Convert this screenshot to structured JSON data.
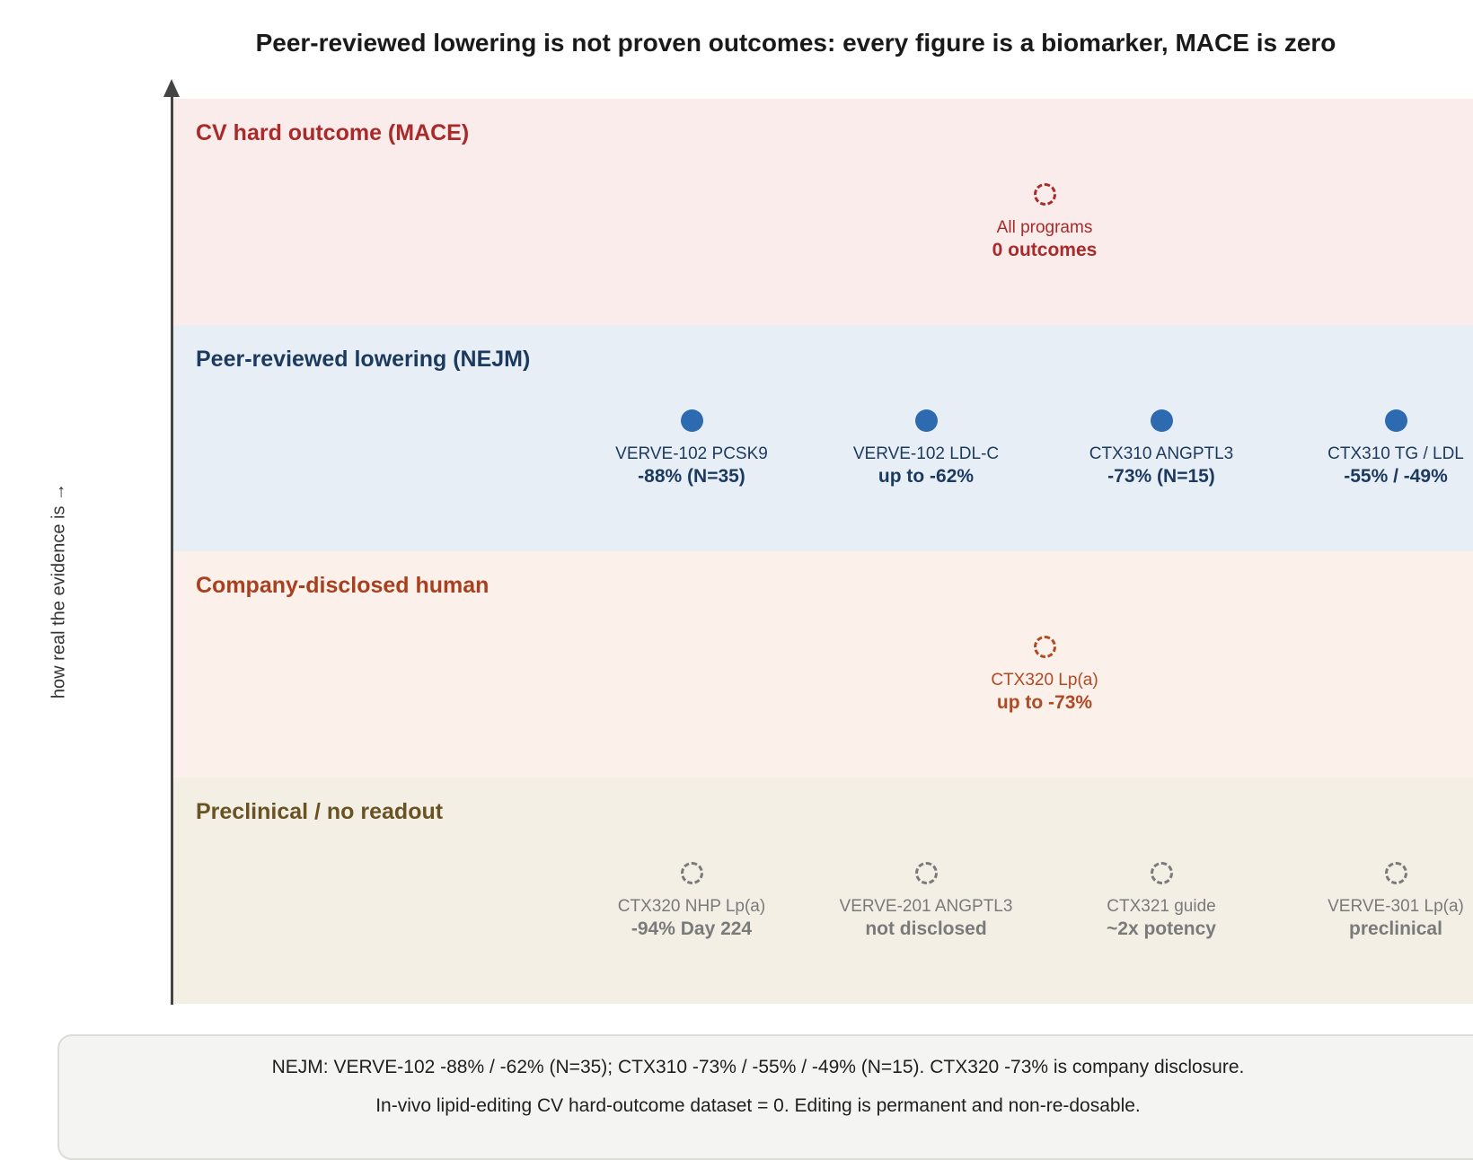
{
  "title": "Peer-reviewed lowering is not proven outcomes: every figure is a biomarker, MACE is zero",
  "y_axis_label": "how real the evidence is →",
  "bands": [
    {
      "label": "CV hard outcome (MACE)",
      "bg": "#faeceb",
      "label_color": "#a82a2a",
      "nodes": [
        {
          "name": "All programs",
          "value": "0 outcomes",
          "marker": "dashed",
          "color": "#a82a2a"
        }
      ]
    },
    {
      "label": "Peer-reviewed lowering (NEJM)",
      "bg": "#e8eef6",
      "label_color": "#1c3a5e",
      "nodes": [
        {
          "name": "VERVE-102 PCSK9",
          "value": "-88% (N=35)",
          "marker": "solid",
          "color": "#1c3a5e"
        },
        {
          "name": "VERVE-102 LDL-C",
          "value": "up to -62%",
          "marker": "solid",
          "color": "#1c3a5e"
        },
        {
          "name": "CTX310 ANGPTL3",
          "value": "-73% (N=15)",
          "marker": "solid",
          "color": "#1c3a5e"
        },
        {
          "name": "CTX310 TG / LDL",
          "value": "-55% / -49%",
          "marker": "solid",
          "color": "#1c3a5e"
        }
      ]
    },
    {
      "label": "Company-disclosed human",
      "bg": "#fcf0ea",
      "label_color": "#a8401f",
      "nodes": [
        {
          "name": "CTX320 Lp(a)",
          "value": "up to -73%",
          "marker": "dashed",
          "color": "#b04a24"
        }
      ]
    },
    {
      "label": "Preclinical / no readout",
      "bg": "#f3efe5",
      "label_color": "#6a5322",
      "nodes": [
        {
          "name": "CTX320 NHP Lp(a)",
          "value": "-94% Day 224",
          "marker": "dashed",
          "color": "#7a7a7a"
        },
        {
          "name": "VERVE-201 ANGPTL3",
          "value": "not disclosed",
          "marker": "dashed",
          "color": "#7a7a7a"
        },
        {
          "name": "CTX321 guide",
          "value": "~2x potency",
          "marker": "dashed",
          "color": "#7a7a7a"
        },
        {
          "name": "VERVE-301 Lp(a)",
          "value": "preclinical",
          "marker": "dashed",
          "color": "#7a7a7a"
        }
      ]
    }
  ],
  "footnote": {
    "line1": "NEJM: VERVE-102 -88% / -62% (N=35); CTX310 -73% / -55% / -49% (N=15). CTX320 -73% is company disclosure.",
    "line2": "In-vivo lipid-editing CV hard-outcome dataset = 0. Editing is permanent and non-re-dosable."
  }
}
